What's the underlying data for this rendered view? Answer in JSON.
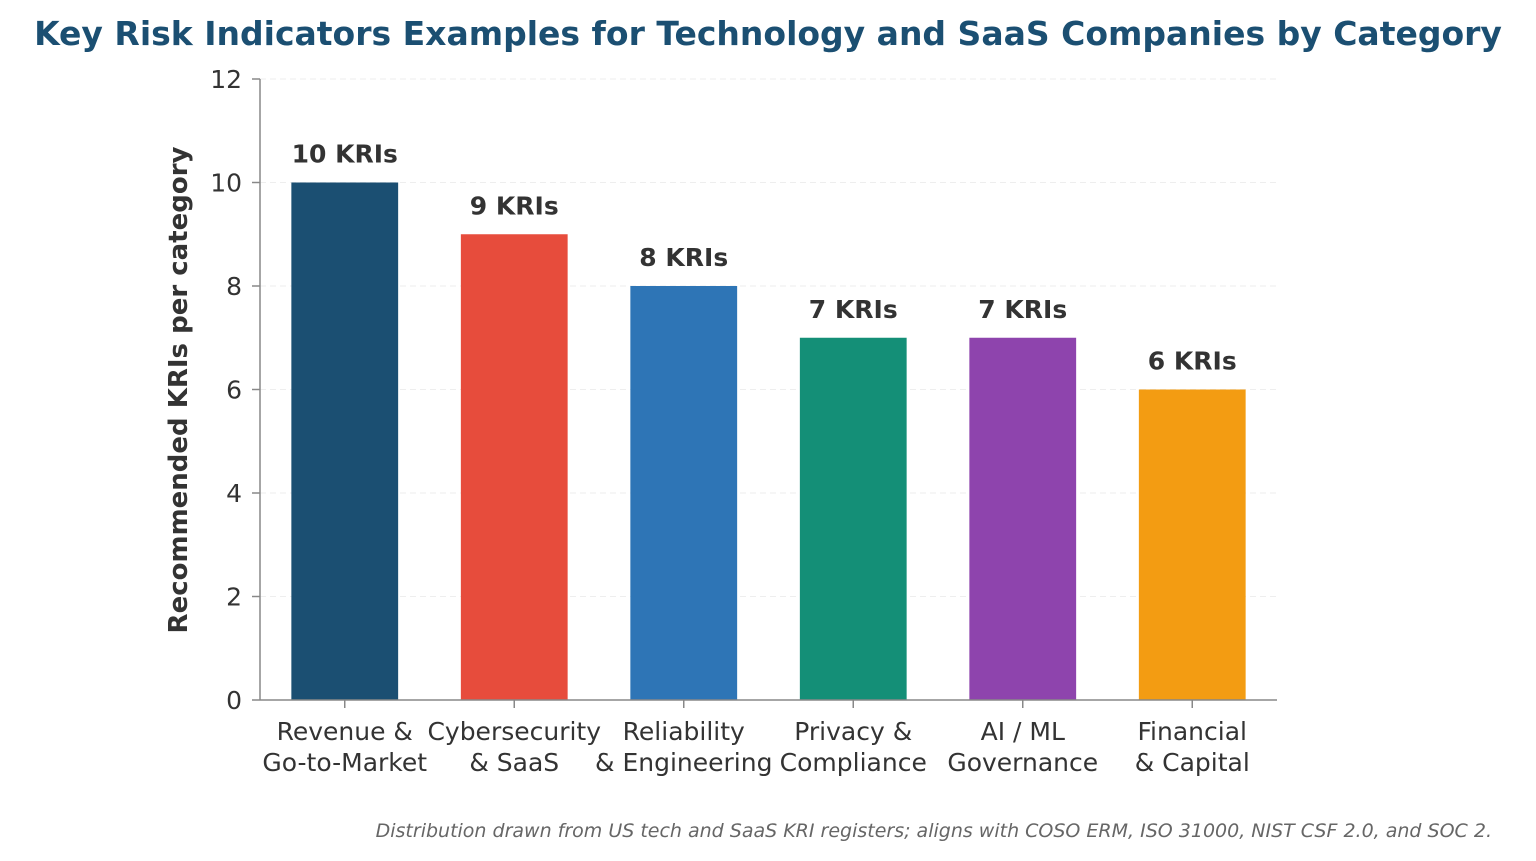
{
  "chart_data": {
    "type": "bar",
    "title": "Key Risk Indicators Examples for Technology and SaaS Companies by Category",
    "ylabel": "Recommended KRIs per category",
    "xlabel": "",
    "ylim": [
      0,
      12
    ],
    "yticks": [
      0,
      2,
      4,
      6,
      8,
      10,
      12
    ],
    "grid": true,
    "categories": [
      [
        "Revenue &",
        "Go-to-Market"
      ],
      [
        "Cybersecurity",
        "& SaaS"
      ],
      [
        "Reliability",
        "& Engineering"
      ],
      [
        "Privacy &",
        "Compliance"
      ],
      [
        "AI / ML",
        "Governance"
      ],
      [
        "Financial",
        "& Capital"
      ]
    ],
    "values": [
      10,
      9,
      8,
      7,
      7,
      6
    ],
    "data_labels": [
      "10 KRIs",
      "9 KRIs",
      "8 KRIs",
      "7 KRIs",
      "7 KRIs",
      "6 KRIs"
    ],
    "colors": [
      "#1b4f72",
      "#e74c3c",
      "#2e75b6",
      "#148f77",
      "#8e44ad",
      "#f39c12"
    ],
    "footnote": "Distribution drawn from US tech and SaaS KRI registers; aligns with COSO ERM, ISO 31000, NIST CSF 2.0, and SOC 2."
  },
  "style": {
    "title_color": "#1b4f72",
    "axis_color": "#888888",
    "grid_color": "#eeeeee"
  }
}
